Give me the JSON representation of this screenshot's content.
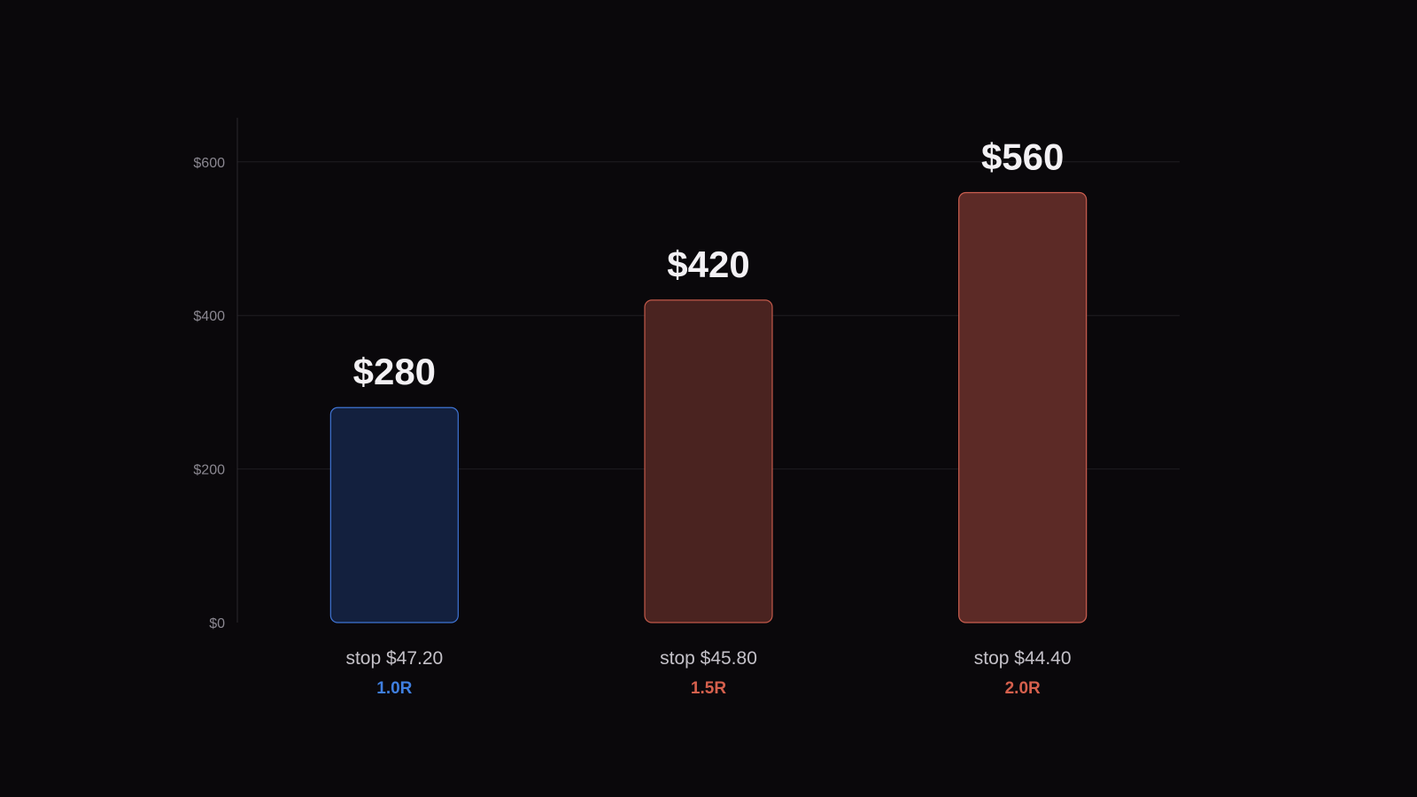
{
  "chart_data": {
    "type": "bar",
    "categories": [
      "stop $47.20",
      "stop $45.80",
      "stop $44.40"
    ],
    "sublabels": [
      "1.0R",
      "1.5R",
      "2.0R"
    ],
    "values": [
      280,
      420,
      560
    ],
    "value_labels": [
      "$280",
      "$420",
      "$560"
    ],
    "yticks": [
      0,
      200,
      400,
      600
    ],
    "ytick_labels": [
      "$0",
      "$200",
      "$400",
      "$600"
    ],
    "ylim": [
      0,
      660
    ],
    "grid": true,
    "bar_styles": [
      {
        "fill": "#13203e",
        "stroke": "#3f74d4",
        "label": "#3f7fe0"
      },
      {
        "fill": "#4a2320",
        "stroke": "#c2594a",
        "label": "#d6604d"
      },
      {
        "fill": "#5c2a26",
        "stroke": "#cc5f50",
        "label": "#d6604d"
      }
    ],
    "colors": {
      "background": "#0a080b",
      "grid": "#1f1d22",
      "axis": "#2a282d"
    }
  }
}
